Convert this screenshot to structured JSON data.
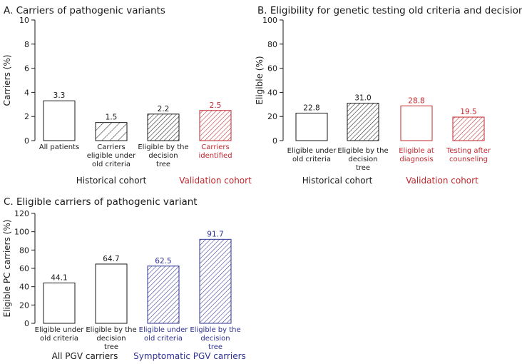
{
  "colors": {
    "black": "#1a1a1a",
    "red": "#c0272d",
    "blue": "#2e3192"
  },
  "chart_data": [
    {
      "panel": "A",
      "type": "bar",
      "title": "A. Carriers of pathogenic variants",
      "ylabel": "Carriers (%)",
      "ylim": [
        0,
        10
      ],
      "yticks": [
        0,
        2,
        4,
        6,
        8,
        10
      ],
      "categories": [
        [
          "All patients"
        ],
        [
          "Carriers",
          "eligible under",
          "old criteria"
        ],
        [
          "Eligible by the",
          "decision",
          "tree"
        ],
        [
          "Carriers",
          "identified"
        ]
      ],
      "values": [
        3.3,
        1.5,
        2.2,
        2.5
      ],
      "value_labels": [
        "3.3",
        "1.5",
        "2.2",
        "2.5"
      ],
      "patterns": [
        "none",
        "hatch-wide",
        "hatch-dense",
        "hatch-dense"
      ],
      "bar_colors": [
        "black",
        "black",
        "black",
        "red"
      ],
      "groups": [
        {
          "label": "Historical cohort",
          "color": "black",
          "span": [
            0,
            2
          ]
        },
        {
          "label": "Validation cohort",
          "color": "red",
          "span": [
            3,
            3
          ]
        }
      ]
    },
    {
      "panel": "B",
      "type": "bar",
      "title": "B. Eligibility for genetic testing old criteria and decision tree",
      "ylabel": "Eligible (%)",
      "ylim": [
        0,
        100
      ],
      "yticks": [
        0,
        20,
        40,
        60,
        80,
        100
      ],
      "categories": [
        [
          "Eligible under",
          "old criteria"
        ],
        [
          "Eligible by the",
          "decision",
          "tree"
        ],
        [
          "Eligible at",
          "diagnosis"
        ],
        [
          "Testing after",
          "counseling"
        ]
      ],
      "values": [
        22.8,
        31.0,
        28.8,
        19.5
      ],
      "value_labels": [
        "22.8",
        "31.0",
        "28.8",
        "19.5"
      ],
      "patterns": [
        "none",
        "hatch-dense",
        "none",
        "hatch-dense"
      ],
      "bar_colors": [
        "black",
        "black",
        "red",
        "red"
      ],
      "groups": [
        {
          "label": "Historical cohort",
          "color": "black",
          "span": [
            0,
            1
          ]
        },
        {
          "label": "Validation cohort",
          "color": "red",
          "span": [
            2,
            3
          ]
        }
      ]
    },
    {
      "panel": "C",
      "type": "bar",
      "title": "C. Eligible carriers of pathogenic variant",
      "ylabel": "Eligible PC carriers (%)",
      "ylim": [
        0,
        120
      ],
      "yticks": [
        0,
        20,
        40,
        60,
        80,
        100,
        120
      ],
      "categories": [
        [
          "Eligible under",
          "old criteria"
        ],
        [
          "Eligible by the",
          "decision",
          "tree"
        ],
        [
          "Eligible under",
          "old criteria"
        ],
        [
          "Eligible by the",
          "decision",
          "tree"
        ]
      ],
      "values": [
        44.1,
        64.7,
        62.5,
        91.7
      ],
      "value_labels": [
        "44.1",
        "64.7",
        "62.5",
        "91.7"
      ],
      "patterns": [
        "none",
        "none",
        "hatch-dense",
        "hatch-dense"
      ],
      "bar_colors": [
        "black",
        "black",
        "blue",
        "blue"
      ],
      "groups": [
        {
          "label": "All PGV carriers",
          "color": "black",
          "span": [
            0,
            1
          ]
        },
        {
          "label": "Symptomatic PGV carriers",
          "color": "blue",
          "span": [
            2,
            3
          ]
        }
      ]
    }
  ]
}
